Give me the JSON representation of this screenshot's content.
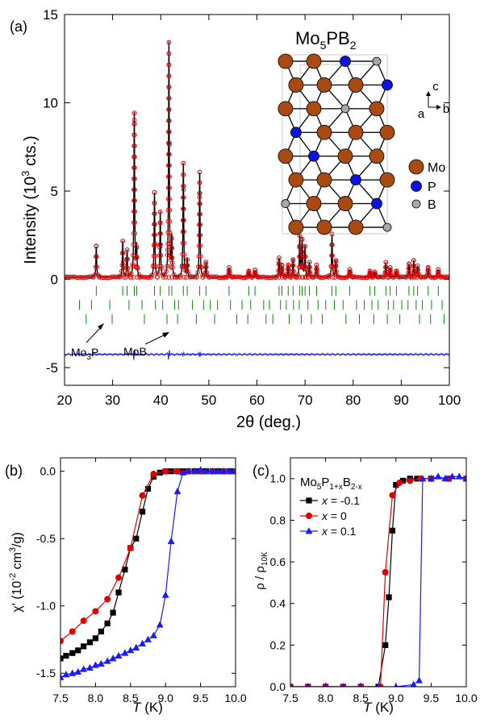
{
  "colors": {
    "black": "#000000",
    "red": "#e00000",
    "blue": "#1a1aff",
    "green": "#0a8a0a",
    "mo": "#a84a12",
    "p": "#0a14e0",
    "b": "#a8a8a8"
  },
  "chart_data": [
    {
      "panel": "a",
      "panel_label": "(a)",
      "type": "line",
      "xlabel": "2θ (deg.)",
      "ylabel": "Intensity (10³ cts.)",
      "xlim": [
        20,
        100
      ],
      "ylim": [
        -6,
        15
      ],
      "xticks": [
        20,
        30,
        40,
        50,
        60,
        70,
        80,
        90,
        100
      ],
      "yticks": [
        -5,
        0,
        5,
        10,
        15
      ],
      "xtick_labels": [
        "20",
        "30",
        "40",
        "50",
        "60",
        "70",
        "80",
        "90",
        "100"
      ],
      "ytick_labels": [
        "-5",
        "0",
        "5",
        "10",
        "15"
      ],
      "formula": "Mo5PB2",
      "formula_parts": {
        "base": "Mo",
        "sub1": "5",
        "mid": "PB",
        "sub2": "2"
      },
      "axes_labels": {
        "c": "c",
        "a": "a",
        "b": "b"
      },
      "legend": [
        {
          "label": "Mo",
          "color": "#a84a12"
        },
        {
          "label": "P",
          "color": "#0a14e0"
        },
        {
          "label": "B",
          "color": "#a8a8a8"
        }
      ],
      "phase_labels": [
        {
          "label": "Mo3P",
          "parts": {
            "base": "Mo",
            "sub": "3",
            "tail": "P"
          }
        },
        {
          "label": "MoB"
        }
      ],
      "background": 0.12,
      "peaks": [
        [
          26.6,
          1.75
        ],
        [
          32.1,
          2.05
        ],
        [
          33.0,
          1.55
        ],
        [
          34.5,
          9.3
        ],
        [
          35.0,
          1.7
        ],
        [
          38.7,
          4.8
        ],
        [
          39.9,
          3.7
        ],
        [
          41.7,
          13.3
        ],
        [
          42.3,
          2.2
        ],
        [
          44.7,
          6.45
        ],
        [
          45.5,
          1.0
        ],
        [
          48.1,
          5.95
        ],
        [
          49.4,
          0.85
        ],
        [
          54.2,
          0.55
        ],
        [
          58.3,
          0.35
        ],
        [
          59.6,
          0.4
        ],
        [
          64.6,
          1.1
        ],
        [
          65.2,
          0.65
        ],
        [
          66.5,
          0.7
        ],
        [
          67.5,
          1.0
        ],
        [
          68.9,
          2.35
        ],
        [
          69.4,
          2.15
        ],
        [
          70.0,
          1.75
        ],
        [
          70.9,
          0.85
        ],
        [
          72.4,
          0.7
        ],
        [
          75.6,
          2.45
        ],
        [
          76.4,
          0.95
        ],
        [
          79.3,
          0.45
        ],
        [
          83.5,
          0.35
        ],
        [
          84.5,
          0.3
        ],
        [
          86.8,
          0.85
        ],
        [
          87.7,
          0.55
        ],
        [
          89.0,
          0.35
        ],
        [
          91.6,
          0.75
        ],
        [
          92.6,
          0.95
        ],
        [
          93.4,
          0.65
        ],
        [
          95.6,
          0.55
        ],
        [
          97.7,
          0.45
        ]
      ],
      "tick_rows": [
        {
          "name": "Mo5PB2",
          "y": -0.65,
          "positions": [
            26.6,
            32.1,
            33.0,
            34.5,
            35.0,
            38.7,
            39.9,
            41.7,
            42.3,
            44.7,
            45.5,
            48.1,
            49.4,
            54.2,
            58.3,
            59.6,
            64.6,
            65.2,
            66.5,
            67.5,
            68.9,
            69.4,
            70.0,
            70.9,
            72.4,
            75.6,
            76.4,
            79.3,
            83.5,
            84.5,
            86.8,
            87.7,
            89.0,
            91.6,
            92.6,
            93.4,
            95.6,
            97.7
          ]
        },
        {
          "name": "Mo3P",
          "y": -1.45,
          "positions": [
            23.1,
            25.6,
            29.4,
            33.4,
            36.1,
            38.9,
            40.4,
            42.9,
            43.7,
            46.6,
            48.9,
            50.3,
            51.8,
            54.5,
            56.9,
            58.7,
            61.4,
            62.6,
            64.9,
            66.1,
            67.6,
            68.8,
            70.6,
            72.7,
            74.3,
            76.1,
            77.9,
            80.7,
            82.3,
            83.9,
            85.2,
            87.3,
            88.4,
            90.1,
            91.4,
            93.1,
            94.4,
            96.3,
            98.5
          ]
        },
        {
          "name": "MoB",
          "y": -2.25,
          "positions": [
            24.5,
            29.9,
            36.6,
            41.3,
            43.5,
            47.4,
            51.2,
            55.8,
            58.1,
            61.9,
            63.3,
            66.7,
            69.2,
            71.3,
            73.6,
            78.5,
            81.3,
            84.3,
            87.1,
            89.7,
            93.8,
            96.1,
            98.9
          ]
        }
      ],
      "difference_offset": -4.25,
      "difference_spikes": [
        [
          34.5,
          0.35
        ],
        [
          41.7,
          0.4
        ],
        [
          44.7,
          0.2
        ],
        [
          48.1,
          0.18
        ]
      ]
    },
    {
      "panel": "b",
      "panel_label": "(b)",
      "type": "line",
      "xlabel": "T (K)",
      "ylabel": "χ' (10⁻² cm³/g)",
      "xlim": [
        7.5,
        10.0
      ],
      "ylim": [
        -1.6,
        0.1
      ],
      "xticks": [
        7.5,
        8.0,
        8.5,
        9.0,
        9.5,
        10.0
      ],
      "yticks": [
        -1.5,
        -1.0,
        -0.5,
        0.0
      ],
      "xtick_labels": [
        "7.5",
        "8.0",
        "8.5",
        "9.0",
        "9.5",
        "10.0"
      ],
      "ytick_labels": [
        "-1.5",
        "-1.0",
        "-0.5",
        "0.0"
      ],
      "series": [
        {
          "name": "x = -0.1",
          "marker": "square",
          "color": "#000000",
          "x": [
            7.5,
            7.58,
            7.67,
            7.75,
            7.83,
            7.92,
            8.0,
            8.08,
            8.17,
            8.25,
            8.33,
            8.42,
            8.5,
            8.58,
            8.67,
            8.75,
            8.83,
            8.92,
            9.0,
            9.08,
            9.17,
            9.25,
            9.33,
            9.42,
            9.5,
            9.58,
            9.67,
            9.75,
            9.83,
            9.92,
            10.0
          ],
          "y": [
            -1.39,
            -1.37,
            -1.35,
            -1.33,
            -1.3,
            -1.27,
            -1.24,
            -1.19,
            -1.13,
            -1.05,
            -0.9,
            -0.73,
            -0.57,
            -0.5,
            -0.3,
            -0.13,
            -0.04,
            -0.01,
            0.0,
            0.0,
            0.0,
            0.0,
            0.0,
            0.0,
            0.0,
            0.0,
            0.0,
            0.0,
            0.0,
            0.0,
            0.0
          ]
        },
        {
          "name": "x = 0",
          "marker": "circle",
          "color": "#e00000",
          "x": [
            7.5,
            7.67,
            7.83,
            8.0,
            8.17,
            8.33,
            8.5,
            8.67,
            8.83,
            9.0,
            9.17,
            9.33,
            9.5,
            9.67,
            9.83,
            10.0
          ],
          "y": [
            -1.26,
            -1.19,
            -1.11,
            -1.04,
            -0.95,
            -0.79,
            -0.57,
            -0.18,
            -0.02,
            0.0,
            0.0,
            0.0,
            0.0,
            0.0,
            0.0,
            0.0
          ]
        },
        {
          "name": "x = 0.1",
          "marker": "triangle",
          "color": "#1a1aff",
          "x": [
            7.5,
            7.58,
            7.67,
            7.75,
            7.83,
            7.92,
            8.0,
            8.08,
            8.17,
            8.25,
            8.33,
            8.42,
            8.5,
            8.58,
            8.67,
            8.75,
            8.83,
            8.92,
            9.0,
            9.08,
            9.17,
            9.25,
            9.33,
            9.42,
            9.5,
            9.58,
            9.67,
            9.75,
            9.83,
            9.92,
            10.0
          ],
          "y": [
            -1.53,
            -1.51,
            -1.5,
            -1.49,
            -1.47,
            -1.46,
            -1.44,
            -1.43,
            -1.41,
            -1.39,
            -1.37,
            -1.35,
            -1.33,
            -1.31,
            -1.28,
            -1.25,
            -1.22,
            -1.14,
            -0.92,
            -0.52,
            -0.15,
            -0.01,
            0.0,
            0.0,
            0.01,
            0.0,
            0.0,
            0.0,
            0.0,
            0.0,
            0.0
          ]
        }
      ]
    },
    {
      "panel": "c",
      "panel_label": "(c)",
      "type": "line",
      "xlabel": "T (K)",
      "ylabel": "ρ / ρ10K",
      "xlim": [
        7.5,
        10.0
      ],
      "ylim": [
        0.0,
        1.1
      ],
      "xticks": [
        7.5,
        8.0,
        8.5,
        9.0,
        9.5,
        10.0
      ],
      "yticks": [
        0.0,
        0.2,
        0.4,
        0.6,
        0.8,
        1.0
      ],
      "xtick_labels": [
        "7.5",
        "8.0",
        "8.5",
        "9.0",
        "9.5",
        "10.0"
      ],
      "ytick_labels": [
        "0.0",
        "0.2",
        "0.4",
        "0.6",
        "0.8",
        "1.0"
      ],
      "legend_title": "Mo5P1+xB2-x",
      "legend_title_parts": {
        "base": "Mo",
        "sub1": "5",
        "mid": "P",
        "sub2": "1+x",
        "mid2": "B",
        "sub3": "2-x"
      },
      "series": [
        {
          "name": "x = -0.1",
          "marker": "square",
          "color": "#000000",
          "x": [
            7.5,
            7.75,
            8.0,
            8.25,
            8.5,
            8.75,
            8.85,
            8.9,
            8.95,
            9.0,
            9.1,
            9.2,
            9.3,
            9.5,
            9.75,
            10.0
          ],
          "y": [
            0.0,
            0.0,
            0.0,
            0.0,
            0.0,
            0.0,
            0.2,
            0.43,
            0.75,
            0.97,
            0.99,
            1.0,
            1.0,
            1.0,
            1.0,
            1.0
          ]
        },
        {
          "name": "x = 0",
          "marker": "circle",
          "color": "#e00000",
          "x": [
            7.5,
            7.75,
            8.0,
            8.25,
            8.5,
            8.78,
            8.85,
            8.95,
            9.05,
            9.2,
            9.35,
            9.5,
            9.75,
            10.0
          ],
          "y": [
            0.0,
            0.0,
            0.0,
            0.0,
            0.0,
            0.0,
            0.55,
            0.92,
            0.98,
            0.99,
            1.0,
            1.0,
            1.0,
            1.0
          ]
        },
        {
          "name": "x = 0.1",
          "marker": "triangle",
          "color": "#1a1aff",
          "x": [
            7.5,
            7.75,
            8.0,
            8.25,
            8.5,
            8.75,
            9.0,
            9.25,
            9.33,
            9.38,
            9.5,
            9.6,
            9.7,
            9.8,
            9.9,
            10.0
          ],
          "y": [
            0.0,
            0.0,
            0.0,
            0.0,
            0.0,
            0.0,
            0.0,
            0.01,
            0.03,
            1.0,
            1.0,
            1.01,
            1.0,
            1.01,
            1.01,
            1.0
          ]
        }
      ]
    }
  ]
}
